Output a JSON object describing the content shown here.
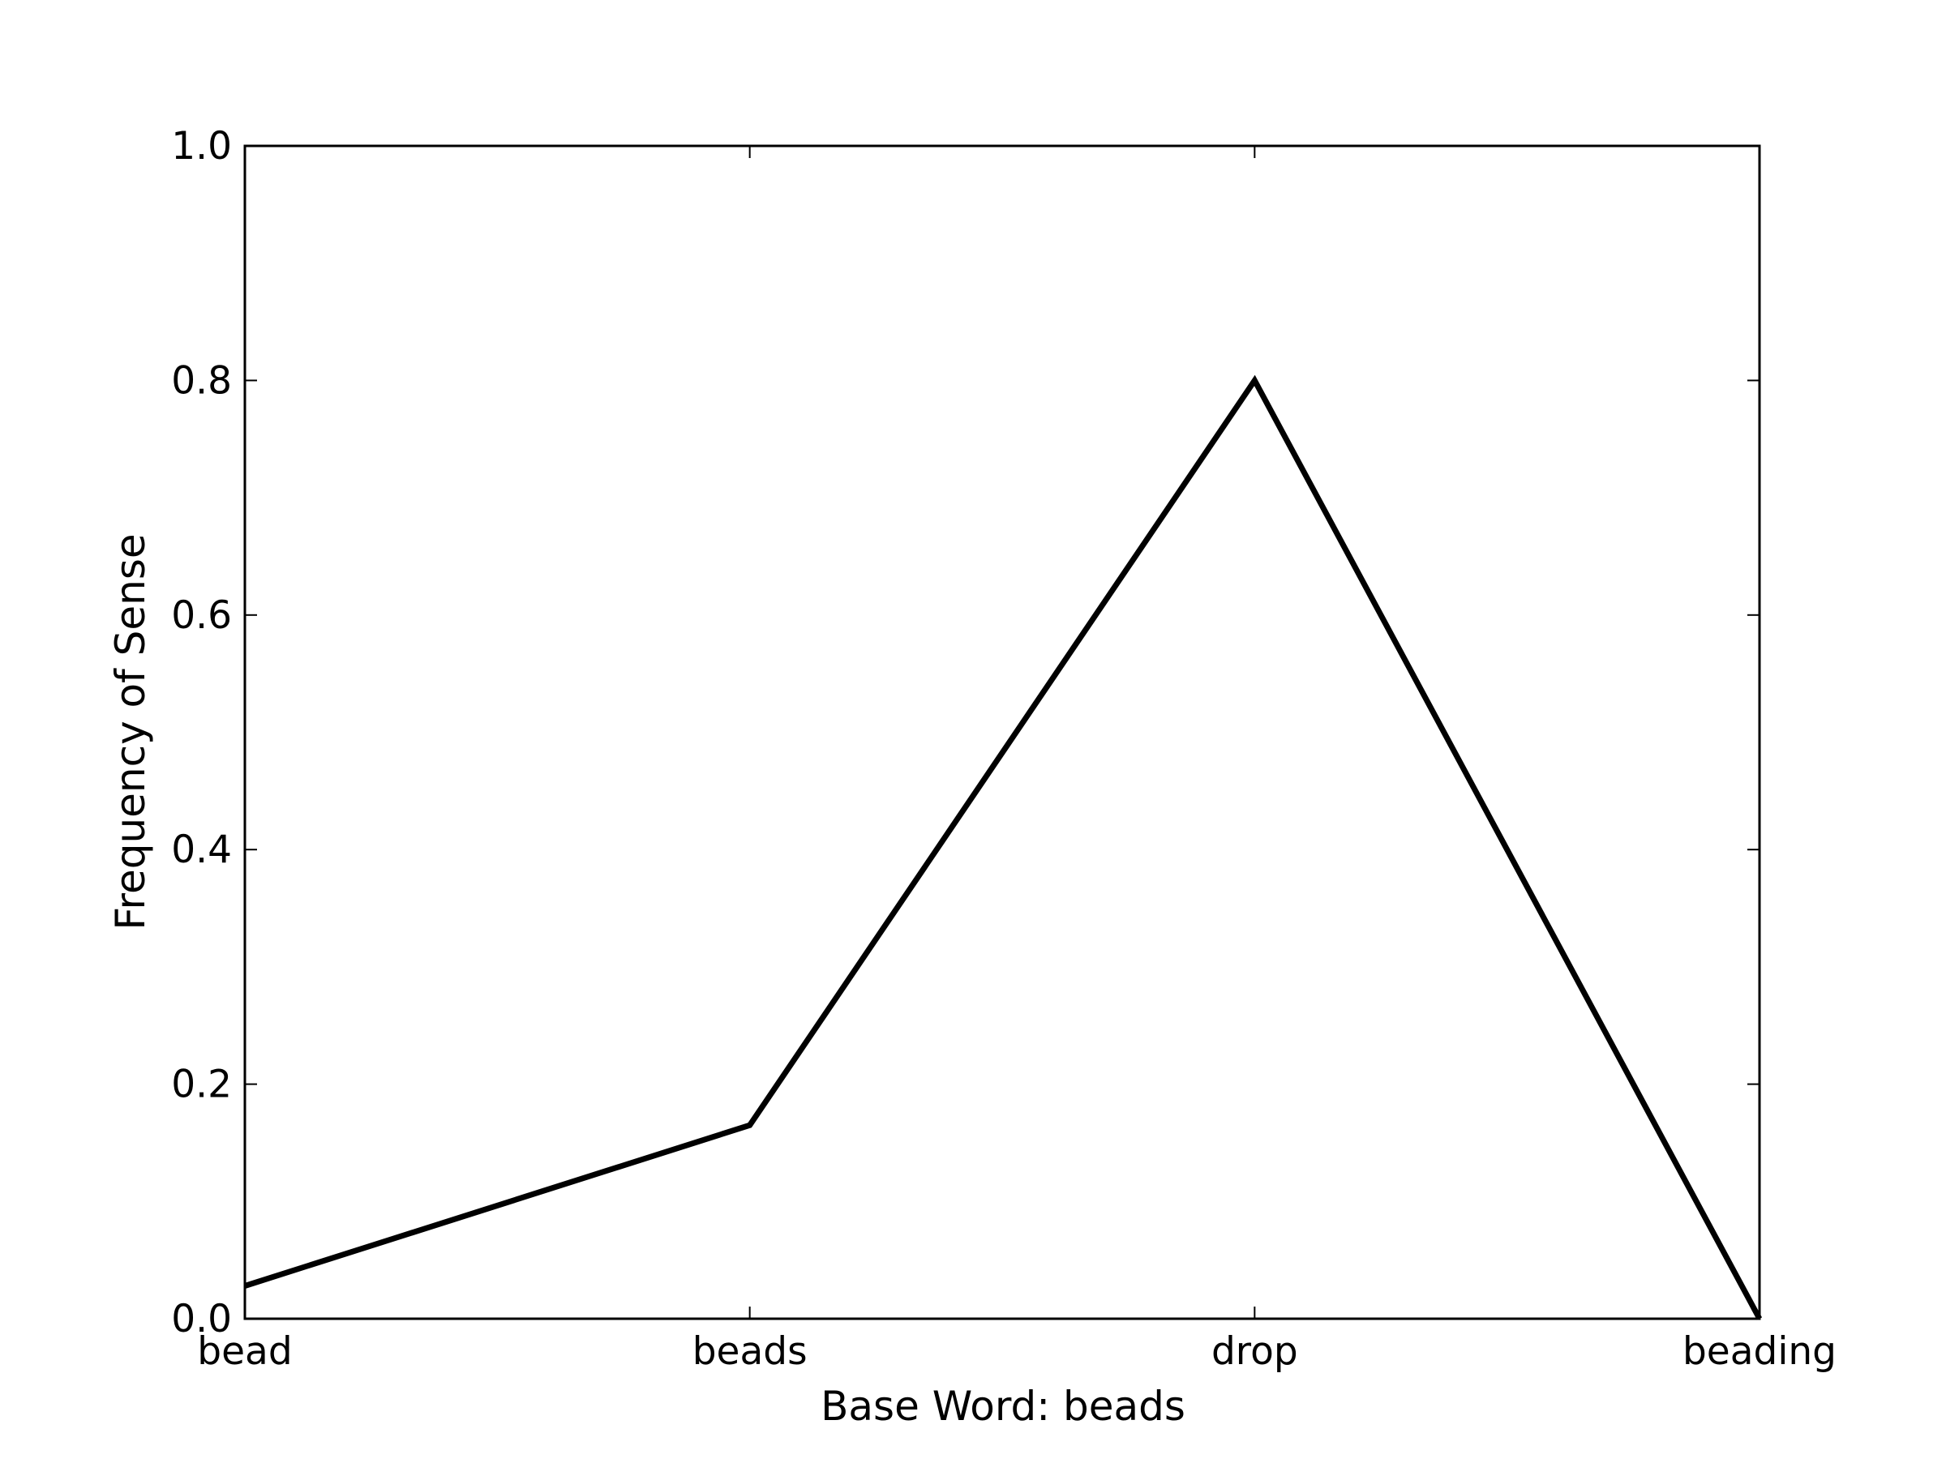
{
  "chart_data": {
    "type": "line",
    "title": "",
    "xlabel": "Base Word: beads",
    "ylabel": "Frequency of Sense",
    "categories": [
      "bead",
      "beads",
      "drop",
      "beading"
    ],
    "series": [
      {
        "values": [
          0.028,
          0.165,
          0.8,
          0.0
        ]
      }
    ],
    "ylim": [
      0.0,
      1.0
    ],
    "yticks": [
      "0.0",
      "0.2",
      "0.4",
      "0.6",
      "0.8",
      "1.0"
    ],
    "grid": false,
    "line_color": "#000000"
  }
}
